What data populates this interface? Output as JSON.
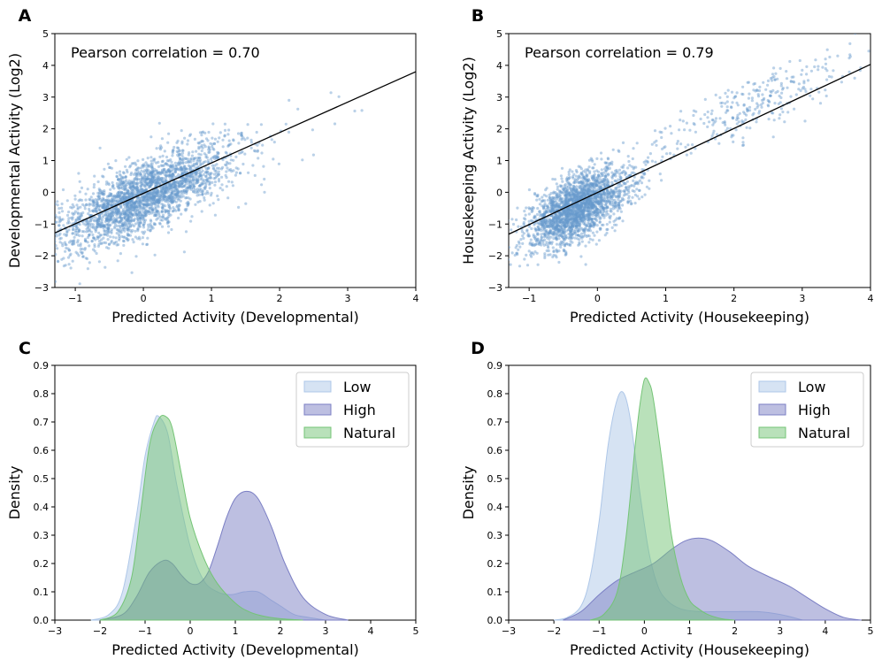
{
  "colors": {
    "scatter": "#6699cc",
    "fit_line": "#000000",
    "low": "#aec7e8",
    "high": "#7b7fc4",
    "natural": "#74c476"
  },
  "chart_data": [
    {
      "panel": "A",
      "type": "scatter",
      "xlabel": "Predicted Activity (Developmental)",
      "ylabel": "Developmental Activity (Log2)",
      "annotation": "Pearson correlation = 0.70",
      "pearson_r": 0.7,
      "xlim": [
        -1.3,
        4
      ],
      "ylim": [
        -3,
        5
      ],
      "xticks": [
        -1,
        0,
        1,
        2,
        3,
        4
      ],
      "xtick_labels": [
        "−1",
        "0",
        "1",
        "2",
        "3",
        "4"
      ],
      "yticks": [
        -3,
        -2,
        -1,
        0,
        1,
        2,
        3,
        4,
        5
      ],
      "ytick_labels": [
        "−3",
        "−2",
        "−1",
        "0",
        "1",
        "2",
        "3",
        "4",
        "5"
      ],
      "fit_line": {
        "x": [
          -1.3,
          4
        ],
        "y": [
          -1.28,
          3.8
        ]
      },
      "cloud": {
        "center": [
          0.0,
          -0.15
        ],
        "x_sd": 0.6,
        "spread_sd": 0.55,
        "slope": 0.96
      }
    },
    {
      "panel": "B",
      "type": "scatter",
      "xlabel": "Predicted Activity (Housekeeping)",
      "ylabel": "Housekeeping Activity (Log2)",
      "annotation": "Pearson correlation = 0.79",
      "pearson_r": 0.79,
      "xlim": [
        -1.3,
        4
      ],
      "ylim": [
        -3,
        5
      ],
      "xticks": [
        -1,
        0,
        1,
        2,
        3,
        4
      ],
      "xtick_labels": [
        "−1",
        "0",
        "1",
        "2",
        "3",
        "4"
      ],
      "yticks": [
        -3,
        -2,
        -1,
        0,
        1,
        2,
        3,
        4,
        5
      ],
      "ytick_labels": [
        "−3",
        "−2",
        "−1",
        "0",
        "1",
        "2",
        "3",
        "4",
        "5"
      ],
      "fit_line": {
        "x": [
          -1.3,
          4
        ],
        "y": [
          -1.32,
          4.03
        ]
      },
      "cloud": {
        "center": [
          -0.3,
          -0.5
        ],
        "x_sd": 0.35,
        "spread_sd": 0.5,
        "slope": 1.0,
        "tail_center": [
          2.3,
          2.8
        ]
      }
    },
    {
      "panel": "C",
      "type": "area",
      "xlabel": "Predicted Activity (Developmental)",
      "ylabel": "Density",
      "xlim": [
        -3,
        5
      ],
      "ylim": [
        0,
        0.9
      ],
      "xticks": [
        -3,
        -2,
        -1,
        0,
        1,
        2,
        3,
        4,
        5
      ],
      "xtick_labels": [
        "−3",
        "−2",
        "−1",
        "0",
        "1",
        "2",
        "3",
        "4",
        "5"
      ],
      "yticks": [
        0,
        0.1,
        0.2,
        0.3,
        0.4,
        0.5,
        0.6,
        0.7,
        0.8,
        0.9
      ],
      "ytick_labels": [
        "0.0",
        "0.1",
        "0.2",
        "0.3",
        "0.4",
        "0.5",
        "0.6",
        "0.7",
        "0.8",
        "0.9"
      ],
      "legend": [
        "Low",
        "High",
        "Natural"
      ],
      "legend_position": "top-right",
      "series": [
        {
          "name": "Low",
          "x": [
            -2.2,
            -1.8,
            -1.5,
            -1.2,
            -1.0,
            -0.8,
            -0.7,
            -0.5,
            -0.3,
            0.0,
            0.3,
            0.6,
            0.9,
            1.2,
            1.5,
            1.8,
            2.0,
            2.3,
            2.6,
            3.0
          ],
          "y": [
            0.0,
            0.02,
            0.1,
            0.36,
            0.58,
            0.7,
            0.72,
            0.66,
            0.48,
            0.26,
            0.14,
            0.1,
            0.09,
            0.1,
            0.1,
            0.07,
            0.05,
            0.02,
            0.01,
            0.0
          ]
        },
        {
          "name": "High",
          "x": [
            -2.0,
            -1.5,
            -1.2,
            -0.9,
            -0.6,
            -0.4,
            -0.2,
            0.0,
            0.2,
            0.4,
            0.6,
            0.8,
            1.0,
            1.25,
            1.5,
            1.8,
            2.1,
            2.5,
            3.0,
            3.5
          ],
          "y": [
            0.0,
            0.02,
            0.08,
            0.17,
            0.21,
            0.2,
            0.16,
            0.13,
            0.13,
            0.17,
            0.26,
            0.36,
            0.43,
            0.455,
            0.43,
            0.33,
            0.2,
            0.08,
            0.02,
            0.0
          ]
        },
        {
          "name": "Natural",
          "x": [
            -2.0,
            -1.6,
            -1.3,
            -1.1,
            -0.9,
            -0.7,
            -0.55,
            -0.4,
            -0.2,
            0.0,
            0.3,
            0.6,
            1.0,
            1.3,
            1.6,
            2.0,
            2.5
          ],
          "y": [
            0.0,
            0.03,
            0.15,
            0.38,
            0.62,
            0.71,
            0.72,
            0.68,
            0.52,
            0.36,
            0.22,
            0.13,
            0.06,
            0.03,
            0.015,
            0.005,
            0.0
          ]
        }
      ]
    },
    {
      "panel": "D",
      "type": "area",
      "xlabel": "Predicted Activity (Housekeeping)",
      "ylabel": "Density",
      "xlim": [
        -3,
        5
      ],
      "ylim": [
        0,
        0.9
      ],
      "xticks": [
        -3,
        -2,
        -1,
        0,
        1,
        2,
        3,
        4,
        5
      ],
      "xtick_labels": [
        "−3",
        "−2",
        "−1",
        "0",
        "1",
        "2",
        "3",
        "4",
        "5"
      ],
      "yticks": [
        0,
        0.1,
        0.2,
        0.3,
        0.4,
        0.5,
        0.6,
        0.7,
        0.8,
        0.9
      ],
      "ytick_labels": [
        "0.0",
        "0.1",
        "0.2",
        "0.3",
        "0.4",
        "0.5",
        "0.6",
        "0.7",
        "0.8",
        "0.9"
      ],
      "legend": [
        "Low",
        "High",
        "Natural"
      ],
      "legend_position": "top-right",
      "series": [
        {
          "name": "Low",
          "x": [
            -2.0,
            -1.7,
            -1.4,
            -1.2,
            -1.0,
            -0.8,
            -0.6,
            -0.45,
            -0.3,
            -0.1,
            0.1,
            0.3,
            0.5,
            0.8,
            1.2,
            1.6,
            2.0,
            2.5,
            3.0,
            3.5
          ],
          "y": [
            0.0,
            0.01,
            0.05,
            0.15,
            0.35,
            0.62,
            0.78,
            0.8,
            0.7,
            0.45,
            0.24,
            0.12,
            0.07,
            0.04,
            0.03,
            0.03,
            0.03,
            0.03,
            0.02,
            0.0
          ]
        },
        {
          "name": "High",
          "x": [
            -1.8,
            -1.4,
            -1.0,
            -0.6,
            -0.2,
            0.2,
            0.6,
            0.9,
            1.2,
            1.5,
            1.9,
            2.3,
            2.8,
            3.2,
            3.6,
            4.0,
            4.4,
            4.8
          ],
          "y": [
            0.0,
            0.03,
            0.09,
            0.14,
            0.17,
            0.2,
            0.25,
            0.28,
            0.29,
            0.28,
            0.24,
            0.19,
            0.15,
            0.12,
            0.08,
            0.04,
            0.01,
            0.0
          ]
        },
        {
          "name": "Natural",
          "x": [
            -1.2,
            -0.9,
            -0.6,
            -0.4,
            -0.2,
            -0.1,
            0.0,
            0.1,
            0.2,
            0.4,
            0.6,
            0.8,
            1.0,
            1.2,
            1.4,
            1.7,
            2.0
          ],
          "y": [
            0.0,
            0.02,
            0.1,
            0.3,
            0.62,
            0.76,
            0.85,
            0.84,
            0.78,
            0.55,
            0.3,
            0.15,
            0.07,
            0.04,
            0.02,
            0.005,
            0.0
          ]
        }
      ]
    }
  ]
}
